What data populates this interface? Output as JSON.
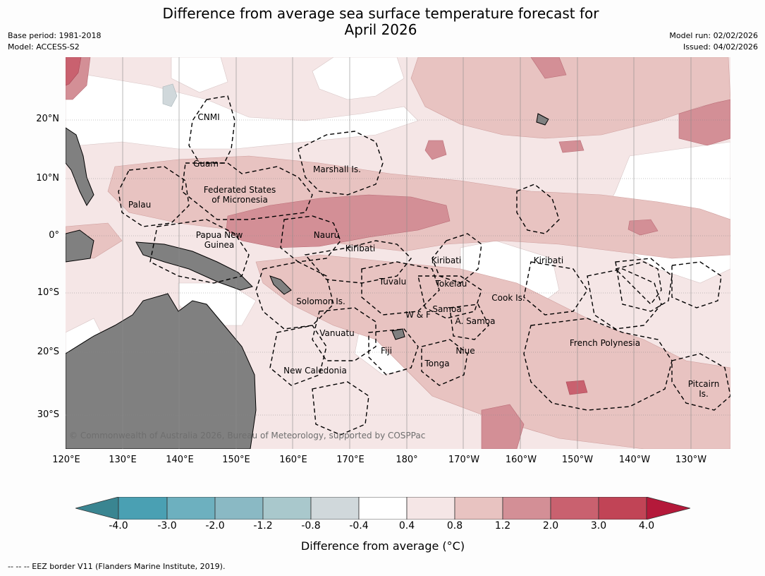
{
  "title": {
    "line1": "Difference from average sea surface temperature forecast for",
    "line2": "April 2026"
  },
  "meta": {
    "base_period": "Base period: 1981-2018",
    "model": "Model: ACCESS-S2",
    "model_run": "Model run: 02/02/2026",
    "issued": "Issued: 04/02/2026"
  },
  "map": {
    "lat_labels": [
      "20°N",
      "10°N",
      "0°",
      "10°S",
      "20°S",
      "30°S"
    ],
    "lon_labels": [
      "120°E",
      "130°E",
      "140°E",
      "150°E",
      "160°E",
      "170°E",
      "180°",
      "170°W",
      "160°W",
      "150°W",
      "140°W",
      "130°W"
    ],
    "places": {
      "cnmi": "CNMI",
      "guam": "Guam",
      "marshall": "Marshall Is.",
      "fsm_1": "Federated States",
      "fsm_2": "of Micronesia",
      "palau": "Palau",
      "png_1": "Papua New",
      "png_2": "Guinea",
      "nauru": "Nauru",
      "kiribati_w": "Kiribati",
      "kiribati_c": "Kiribati",
      "kiribati_e": "Kiribati",
      "tuvalu": "Tuvalu",
      "tokelau": "Tokelau",
      "solomon": "Solomon Is.",
      "cook": "Cook Is.",
      "samoa": "Samoa",
      "wf": "W & F",
      "asamoa": "A. Samoa",
      "vanuatu": "Vanuatu",
      "fiji": "Fiji",
      "niue": "Niue",
      "tonga": "Tonga",
      "frenchpoly": "French Polynesia",
      "newcal": "New Caledonia",
      "pitcairn_1": "Pitcairn",
      "pitcairn_2": "Is."
    },
    "copyright": "© Commonwealth of Australia 2026, Bureau of Meteorology, supported by COSPPac",
    "land_color": "#808080"
  },
  "colorbar": {
    "ticks": [
      "-4.0",
      "-3.0",
      "-2.0",
      "-1.2",
      "-0.8",
      "-0.4",
      "0.4",
      "0.8",
      "1.2",
      "2.0",
      "3.0",
      "4.0"
    ],
    "colors": [
      "#3a8591",
      "#4aa0b3",
      "#6db0bf",
      "#8ab9c4",
      "#a9c8cc",
      "#d0d8db",
      "#ffffff",
      "#f5e6e6",
      "#e8c3c1",
      "#d38f96",
      "#c9616f",
      "#c14456",
      "#b4193a"
    ],
    "title": "Difference from average (°C)"
  },
  "footer": "--  --  -- EEZ border V11 (Flanders Marine Institute, 2019)."
}
